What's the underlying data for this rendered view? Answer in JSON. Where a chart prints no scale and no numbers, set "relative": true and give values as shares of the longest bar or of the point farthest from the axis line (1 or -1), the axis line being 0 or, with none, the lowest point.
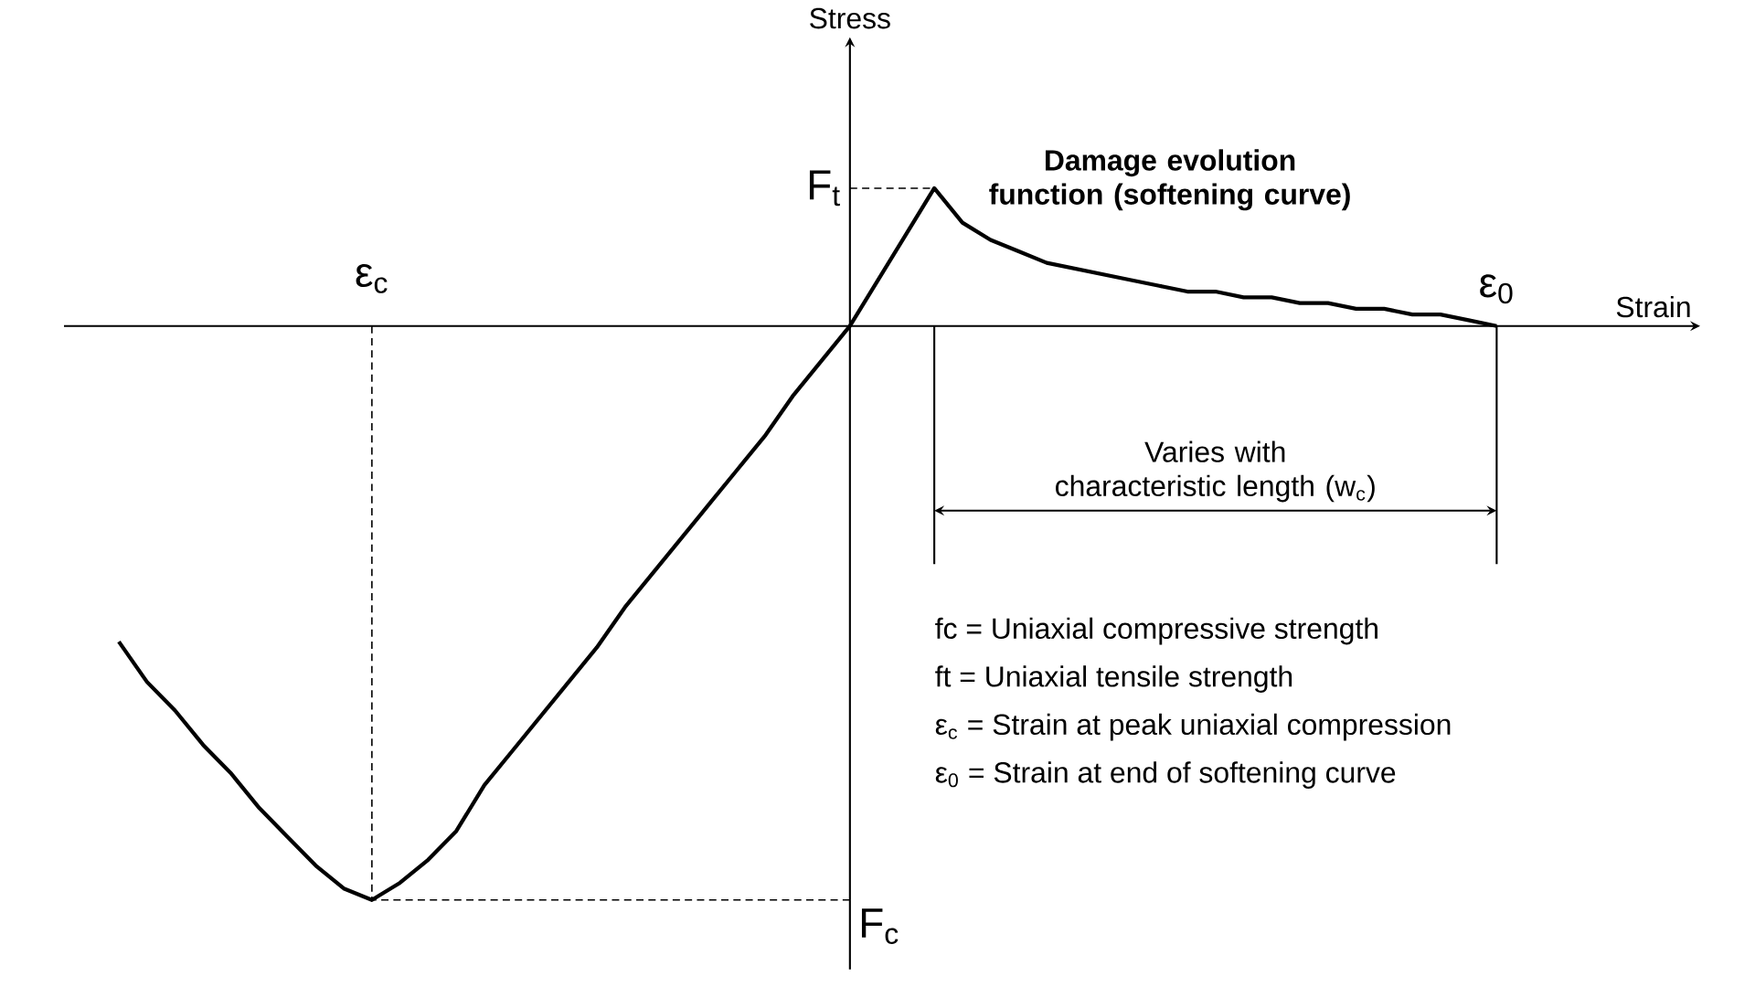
{
  "chart_data": {
    "type": "line",
    "relative": true,
    "xlabel": "Strain",
    "categories": [
      null,
      null,
      null,
      null,
      null,
      null,
      null,
      null,
      null,
      null,
      null,
      null,
      null,
      null,
      null,
      null,
      null,
      null,
      null,
      null,
      null,
      null,
      null,
      null,
      null,
      null,
      null,
      null,
      null,
      null,
      null,
      null,
      null,
      null,
      null,
      null,
      null,
      null,
      null,
      null,
      null,
      null,
      null,
      null,
      null,
      null,
      null,
      null,
      null,
      null
    ],
    "series": [
      {
        "color": "#000000",
        "values": [
          -0.55,
          -0.62,
          -0.67,
          -0.73,
          -0.78,
          -0.84,
          -0.89,
          -0.94,
          -0.98,
          -1,
          -0.97,
          -0.93,
          -0.88,
          -0.8,
          -0.74,
          -0.68,
          -0.62,
          -0.56,
          -0.49,
          -0.43,
          -0.37,
          -0.31,
          -0.25,
          -0.19,
          -0.12,
          -0.06,
          0,
          0.08,
          0.16,
          0.24,
          0.18,
          0.15,
          0.13,
          0.11,
          0.1,
          0.09,
          0.08,
          0.07,
          0.06,
          0.06,
          0.05,
          0.05,
          0.04,
          0.04,
          0.03,
          0.03,
          0.02,
          0.02,
          0.01,
          0
        ]
      }
    ],
    "annotations": [
      "Damage evolution function (softening curve)",
      "Varies with characteristic length (w$_{c}$)",
      "F$_{t}$",
      "F$_{c}$",
      "ε$_{c}$",
      "ε$_{0}$",
      "fc = Uniaxial compressive strength",
      "ft = Uniaxial tensile strength",
      "ε$_{c}$ = Strain at peak uniaxial compression",
      "ε$_{0}$ = Strain at end of softening curve",
      "Stress"
    ]
  }
}
